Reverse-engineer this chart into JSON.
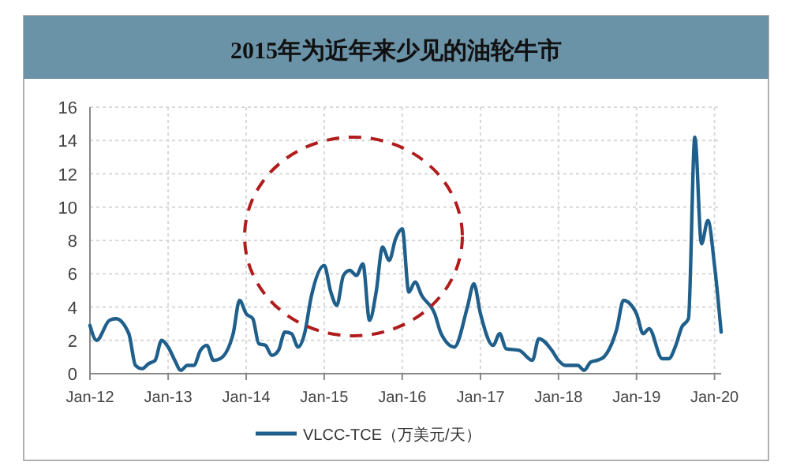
{
  "chart_data": {
    "type": "line",
    "title": "2015年为近年来少见的油轮牛市",
    "x": [
      "2012-01",
      "2012-02",
      "2012-04",
      "2012-05",
      "2012-07",
      "2012-08",
      "2012-09",
      "2012-10",
      "2012-11",
      "2012-12",
      "2013-01",
      "2013-02",
      "2013-03",
      "2013-04",
      "2013-05",
      "2013-06",
      "2013-07",
      "2013-08",
      "2013-09",
      "2013-11",
      "2013-12",
      "2014-01",
      "2014-02",
      "2014-03",
      "2014-04",
      "2014-05",
      "2014-06",
      "2014-07",
      "2014-08",
      "2014-09",
      "2014-10",
      "2014-11",
      "2015-01",
      "2015-02",
      "2015-03",
      "2015-04",
      "2015-05",
      "2015-06",
      "2015-07",
      "2015-08",
      "2015-09",
      "2015-10",
      "2015-11",
      "2015-12",
      "2016-01",
      "2016-02",
      "2016-03",
      "2016-04",
      "2016-06",
      "2016-07",
      "2016-09",
      "2016-11",
      "2016-12",
      "2017-01",
      "2017-03",
      "2017-04",
      "2017-05",
      "2017-07",
      "2017-09",
      "2017-10",
      "2017-12",
      "2018-01",
      "2018-02",
      "2018-04",
      "2018-05",
      "2018-06",
      "2018-07",
      "2018-08",
      "2018-10",
      "2018-11",
      "2019-01",
      "2019-02",
      "2019-03",
      "2019-05",
      "2019-06",
      "2019-07",
      "2019-08",
      "2019-09",
      "2019-10",
      "2019-11",
      "2019-12",
      "2020-01",
      "2020-02"
    ],
    "series": [
      {
        "name": "VLCC-TCE（万美元/天）",
        "color": "#1f5f8b",
        "values": [
          2.9,
          2.0,
          3.2,
          3.3,
          2.4,
          0.5,
          0.3,
          0.6,
          0.8,
          2.0,
          1.6,
          0.8,
          0.2,
          0.5,
          0.5,
          1.4,
          1.7,
          0.8,
          0.9,
          2.4,
          4.4,
          3.6,
          3.3,
          1.8,
          1.7,
          1.1,
          1.4,
          2.5,
          2.4,
          1.6,
          2.4,
          4.6,
          6.5,
          4.9,
          4.1,
          5.9,
          6.2,
          5.9,
          6.6,
          3.2,
          4.9,
          7.6,
          6.8,
          8.1,
          8.7,
          4.9,
          5.5,
          4.7,
          3.6,
          2.4,
          1.6,
          4.0,
          5.4,
          3.6,
          1.7,
          2.4,
          1.5,
          1.4,
          0.8,
          2.1,
          1.4,
          0.8,
          0.5,
          0.5,
          0.2,
          0.7,
          0.8,
          1.0,
          2.7,
          4.4,
          3.6,
          2.4,
          2.7,
          0.9,
          0.9,
          1.6,
          2.8,
          3.3,
          14.2,
          7.8,
          9.2,
          6.5,
          2.5
        ]
      }
    ],
    "xlim": [
      "2012-01",
      "2020-02"
    ],
    "xticks": [
      {
        "value": "2012-01",
        "label": "Jan-12"
      },
      {
        "value": "2013-01",
        "label": "Jan-13"
      },
      {
        "value": "2014-01",
        "label": "Jan-14"
      },
      {
        "value": "2015-01",
        "label": "Jan-15"
      },
      {
        "value": "2016-01",
        "label": "Jan-16"
      },
      {
        "value": "2017-01",
        "label": "Jan-17"
      },
      {
        "value": "2018-01",
        "label": "Jan-18"
      },
      {
        "value": "2019-01",
        "label": "Jan-19"
      },
      {
        "value": "2020-01",
        "label": "Jan-20"
      }
    ],
    "ylim": [
      0,
      16
    ],
    "yticks": [
      0,
      2,
      4,
      6,
      8,
      10,
      12,
      14,
      16
    ],
    "grid": true,
    "legend": "bottom",
    "line_style": "solid"
  }
}
